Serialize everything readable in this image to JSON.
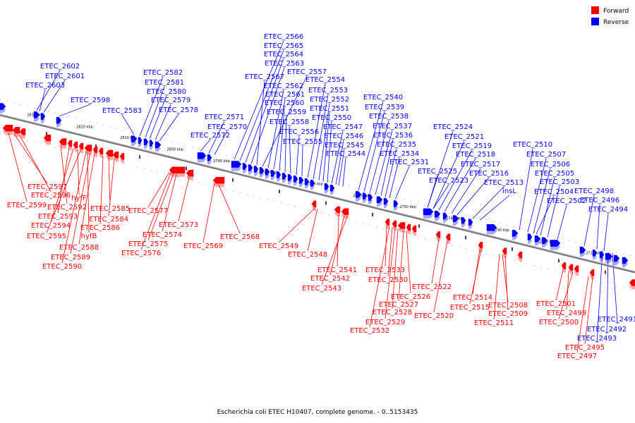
{
  "caption": "Escherichia coli ETEC H10407, complete genome. - 0..5153435",
  "legend": [
    {
      "label": "Forward",
      "color": "#ff0000"
    },
    {
      "label": "Reverse",
      "color": "#0000ff"
    }
  ],
  "colors": {
    "forward": "#ff0000",
    "reverse": "#0000ff",
    "axis": "#777777"
  },
  "ticks": [
    "2830 kbp",
    "2820 kbp",
    "2810 kbp",
    "2800 kbp",
    "2790 kbp",
    "2780 kbp",
    "2770 kbp",
    "2760 kbp",
    "2750 kbp",
    "2740 kbp",
    "2730 kbp",
    "2720 kbp",
    "2710 kbp"
  ],
  "reverse_labels": [
    "ETEC_2602",
    "ETEC_2601",
    "ETEC_2603",
    "ETEC_2598",
    "ETEC_2583",
    "ETEC_2582",
    "ETEC_2581",
    "ETEC_2580",
    "ETEC_2579",
    "ETEC_2578",
    "ETEC_2572",
    "ETEC_2571",
    "ETEC_2570",
    "ETEC_2566",
    "ETEC_2565",
    "ETEC_2564",
    "ETEC_2563",
    "ETEC_2567",
    "ETEC_2557",
    "ETEC_2562",
    "ETEC_2561",
    "ETEC_2560",
    "ETEC_2559",
    "ETEC_2558",
    "ETEC_2556",
    "ETEC_2555",
    "ETEC_2554",
    "ETEC_2553",
    "ETEC_2552",
    "ETEC_2551",
    "ETEC_2550",
    "ETEC_2547",
    "ETEC_2546",
    "ETEC_2545",
    "ETEC_2544",
    "ETEC_2540",
    "ETEC_2539",
    "ETEC_2538",
    "ETEC_2537",
    "ETEC_2536",
    "ETEC_2535",
    "ETEC_2534",
    "ETEC_2531",
    "ETEC_2524",
    "ETEC_2521",
    "ETEC_2519",
    "ETEC_2518",
    "ETEC_2517",
    "ETEC_2516",
    "ETEC_2525",
    "ETEC_2523",
    "ETEC_2513",
    "insL",
    "ETEC_2510",
    "ETEC_2507",
    "ETEC_2506",
    "ETEC_2505",
    "ETEC_2503",
    "ETEC_2504",
    "ETEC_2502",
    "ETEC_2498",
    "ETEC_2496",
    "ETEC_2494",
    "ETEC_2491",
    "ETEC_2492",
    "ETEC_2493"
  ],
  "forward_labels": [
    "ETEC_2597",
    "ETEC_2596",
    "hyfF",
    "ETEC_2599",
    "ETEC_2592",
    "ETEC_2593",
    "ETEC_2594",
    "ETEC_2595",
    "ETEC_2585",
    "ETEC_2584",
    "hyfB",
    "ETEC_2586",
    "ETEC_2588",
    "ETEC_2589",
    "ETEC_2590",
    "ETEC_2577",
    "ETEC_2574",
    "ETEC_2573",
    "ETEC_2575",
    "ETEC_2576",
    "ETEC_2569",
    "ETEC_2568",
    "ETEC_2549",
    "ETEC_2548",
    "ETEC_2541",
    "ETEC_2542",
    "ETEC_2543",
    "ETEC_2533",
    "ETEC_2530",
    "ETEC_2526",
    "ETEC_2527",
    "ETEC_2528",
    "ETEC_2529",
    "ETEC_2532",
    "ETEC_2522",
    "ETEC_2520",
    "ETEC_2514",
    "ETEC_2515",
    "ETEC_2508",
    "ETEC_2509",
    "ETEC_2511",
    "ETEC_2501",
    "ETEC_2499",
    "ETEC_2500",
    "ETEC_2495",
    "ETEC_2497"
  ]
}
